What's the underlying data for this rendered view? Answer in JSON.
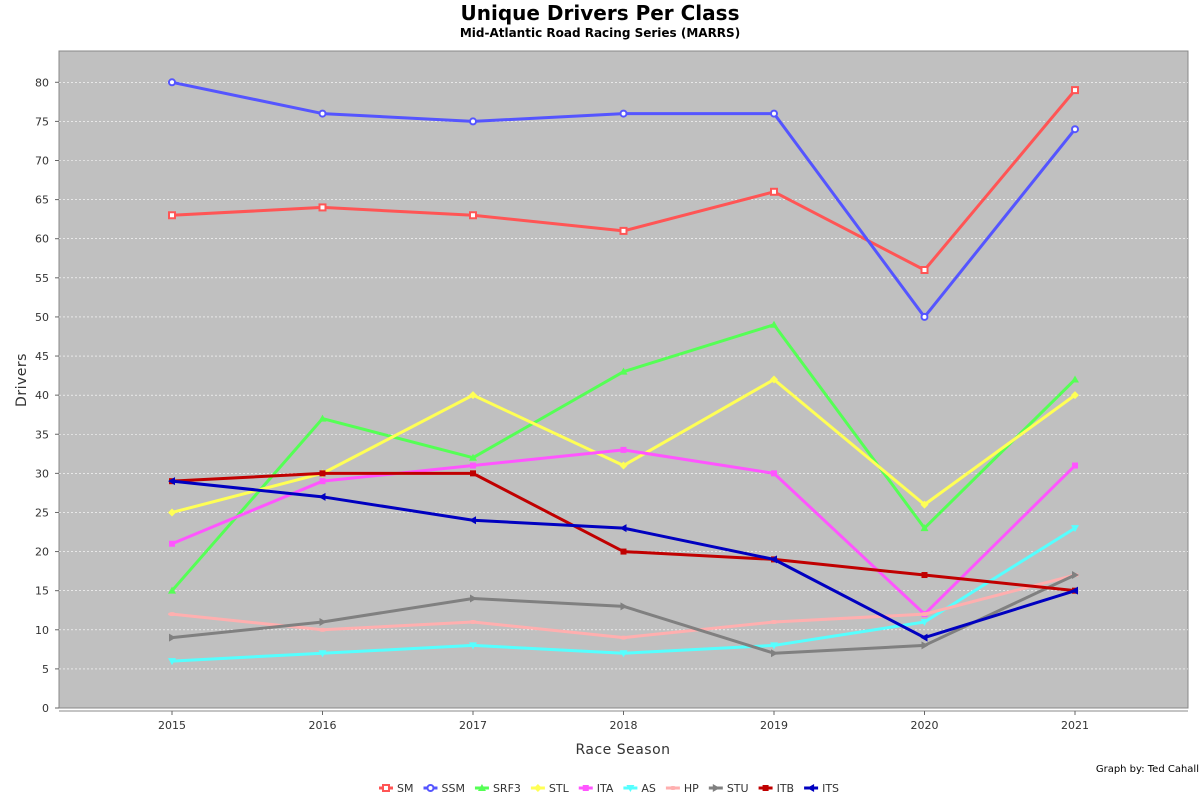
{
  "chart_data": {
    "type": "line",
    "title": "Unique Drivers Per Class",
    "subtitle": "Mid-Atlantic Road Racing Series (MARRS)",
    "xlabel": "Race Season",
    "ylabel": "Drivers",
    "credit": "Graph by: Ted Cahall",
    "categories": [
      "2015",
      "2016",
      "2017",
      "2018",
      "2019",
      "2020",
      "2021"
    ],
    "ylim": [
      0,
      84
    ],
    "yticks": [
      0,
      5,
      10,
      15,
      20,
      25,
      30,
      35,
      40,
      45,
      50,
      55,
      60,
      65,
      70,
      75,
      80
    ],
    "grid": true,
    "legend_position": "bottom",
    "background_color": "#c0c0c0",
    "series": [
      {
        "name": "SM",
        "color": "#ff5555",
        "marker": "square-open",
        "values": [
          63,
          64,
          63,
          61,
          66,
          56,
          79
        ]
      },
      {
        "name": "SSM",
        "color": "#5555ff",
        "marker": "circle-open",
        "values": [
          80,
          76,
          75,
          76,
          76,
          50,
          74
        ]
      },
      {
        "name": "SRF3",
        "color": "#55ff55",
        "marker": "triangle-up",
        "values": [
          15,
          37,
          32,
          43,
          49,
          23,
          42
        ]
      },
      {
        "name": "STL",
        "color": "#ffff55",
        "marker": "diamond",
        "values": [
          25,
          30,
          40,
          31,
          42,
          26,
          40
        ]
      },
      {
        "name": "ITA",
        "color": "#ff55ff",
        "marker": "square",
        "values": [
          21,
          29,
          31,
          33,
          30,
          12,
          31
        ]
      },
      {
        "name": "AS",
        "color": "#55ffff",
        "marker": "triangle-down",
        "values": [
          6,
          7,
          8,
          7,
          8,
          11,
          23
        ]
      },
      {
        "name": "HP",
        "color": "#ffafaf",
        "marker": "ellipse",
        "values": [
          12,
          10,
          11,
          9,
          11,
          12,
          17
        ]
      },
      {
        "name": "STU",
        "color": "#808080",
        "marker": "triangle-right",
        "values": [
          9,
          11,
          14,
          13,
          7,
          8,
          17
        ]
      },
      {
        "name": "ITB",
        "color": "#c00000",
        "marker": "square",
        "values": [
          29,
          30,
          30,
          20,
          19,
          17,
          15
        ]
      },
      {
        "name": "ITS",
        "color": "#0000c0",
        "marker": "triangle-left",
        "values": [
          29,
          27,
          24,
          23,
          19,
          9,
          15
        ]
      }
    ]
  }
}
